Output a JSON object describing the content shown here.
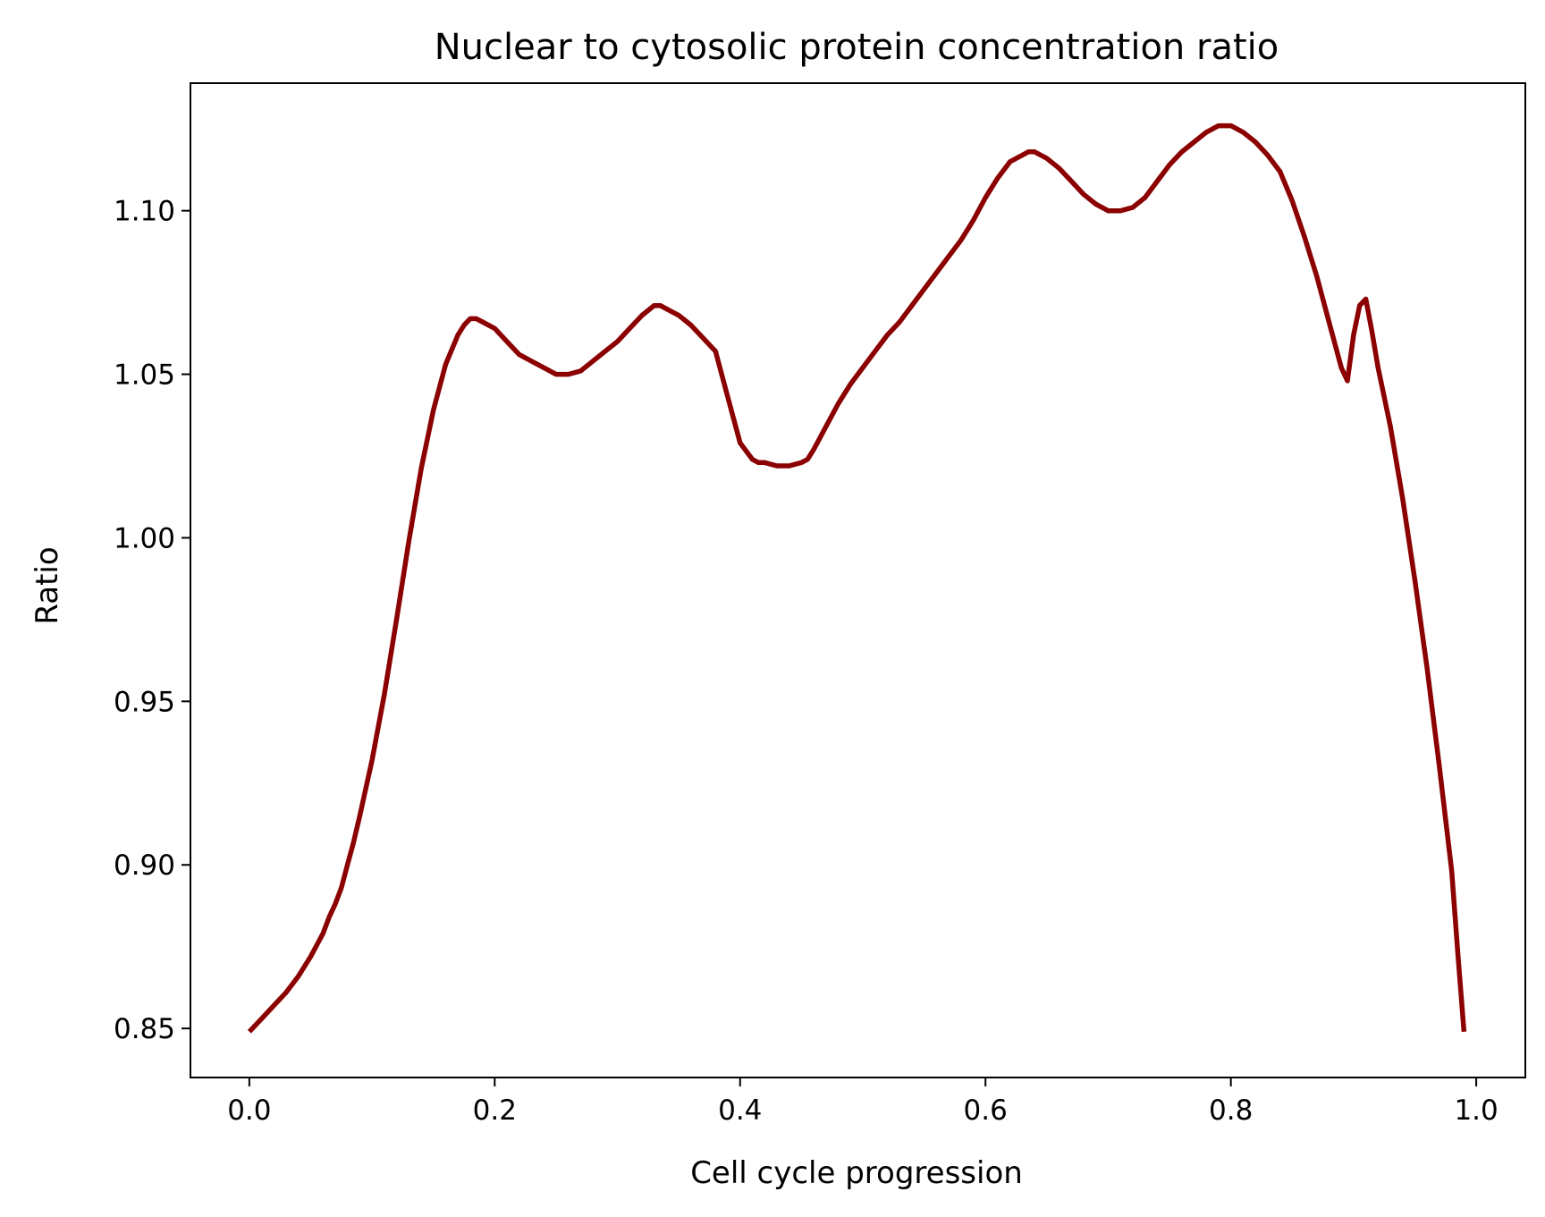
{
  "chart_data": {
    "type": "line",
    "title": "Nuclear to cytosolic protein concentration ratio",
    "xlabel": "Cell cycle progression",
    "ylabel": "Ratio",
    "xlim": [
      -0.048,
      1.04
    ],
    "ylim": [
      0.835,
      1.139
    ],
    "xticks": [
      0.0,
      0.2,
      0.4,
      0.6,
      0.8,
      1.0
    ],
    "xtick_labels": [
      "0.0",
      "0.2",
      "0.4",
      "0.6",
      "0.8",
      "1.0"
    ],
    "yticks": [
      0.85,
      0.9,
      0.95,
      1.0,
      1.05,
      1.1
    ],
    "ytick_labels": [
      "0.85",
      "0.90",
      "0.95",
      "1.00",
      "1.05",
      "1.10"
    ],
    "grid": false,
    "legend": false,
    "series": [
      {
        "color": "#8b0000",
        "x": [
          0.0,
          0.01,
          0.02,
          0.03,
          0.04,
          0.05,
          0.06,
          0.065,
          0.07,
          0.075,
          0.08,
          0.085,
          0.09,
          0.1,
          0.11,
          0.12,
          0.13,
          0.14,
          0.15,
          0.16,
          0.17,
          0.175,
          0.18,
          0.185,
          0.19,
          0.2,
          0.21,
          0.22,
          0.23,
          0.24,
          0.25,
          0.26,
          0.27,
          0.28,
          0.29,
          0.3,
          0.31,
          0.32,
          0.33,
          0.335,
          0.34,
          0.35,
          0.36,
          0.37,
          0.38,
          0.39,
          0.4,
          0.41,
          0.415,
          0.42,
          0.43,
          0.44,
          0.45,
          0.455,
          0.46,
          0.47,
          0.48,
          0.49,
          0.5,
          0.51,
          0.52,
          0.53,
          0.54,
          0.55,
          0.56,
          0.57,
          0.58,
          0.59,
          0.6,
          0.61,
          0.62,
          0.63,
          0.635,
          0.64,
          0.645,
          0.65,
          0.66,
          0.67,
          0.68,
          0.69,
          0.7,
          0.705,
          0.71,
          0.72,
          0.73,
          0.74,
          0.75,
          0.76,
          0.77,
          0.78,
          0.79,
          0.795,
          0.8,
          0.805,
          0.81,
          0.82,
          0.83,
          0.84,
          0.85,
          0.86,
          0.87,
          0.88,
          0.89,
          0.895,
          0.9,
          0.905,
          0.91,
          0.915,
          0.92,
          0.93,
          0.94,
          0.95,
          0.96,
          0.97,
          0.98,
          0.985,
          0.99
        ],
        "y": [
          0.849,
          0.853,
          0.857,
          0.861,
          0.866,
          0.872,
          0.879,
          0.884,
          0.888,
          0.893,
          0.9,
          0.907,
          0.915,
          0.932,
          0.952,
          0.975,
          0.999,
          1.021,
          1.039,
          1.053,
          1.062,
          1.065,
          1.067,
          1.067,
          1.066,
          1.064,
          1.06,
          1.056,
          1.054,
          1.052,
          1.05,
          1.05,
          1.051,
          1.054,
          1.057,
          1.06,
          1.064,
          1.068,
          1.071,
          1.071,
          1.07,
          1.068,
          1.065,
          1.061,
          1.057,
          1.043,
          1.029,
          1.024,
          1.023,
          1.023,
          1.022,
          1.022,
          1.023,
          1.024,
          1.027,
          1.034,
          1.041,
          1.047,
          1.052,
          1.057,
          1.062,
          1.066,
          1.071,
          1.076,
          1.081,
          1.086,
          1.091,
          1.097,
          1.104,
          1.11,
          1.115,
          1.117,
          1.118,
          1.118,
          1.117,
          1.116,
          1.113,
          1.109,
          1.105,
          1.102,
          1.1,
          1.1,
          1.1,
          1.101,
          1.104,
          1.109,
          1.114,
          1.118,
          1.121,
          1.124,
          1.126,
          1.126,
          1.126,
          1.125,
          1.124,
          1.121,
          1.117,
          1.112,
          1.103,
          1.092,
          1.08,
          1.066,
          1.052,
          1.048,
          1.062,
          1.071,
          1.073,
          1.063,
          1.052,
          1.034,
          1.012,
          0.987,
          0.96,
          0.93,
          0.898,
          0.873,
          0.849
        ]
      }
    ]
  }
}
